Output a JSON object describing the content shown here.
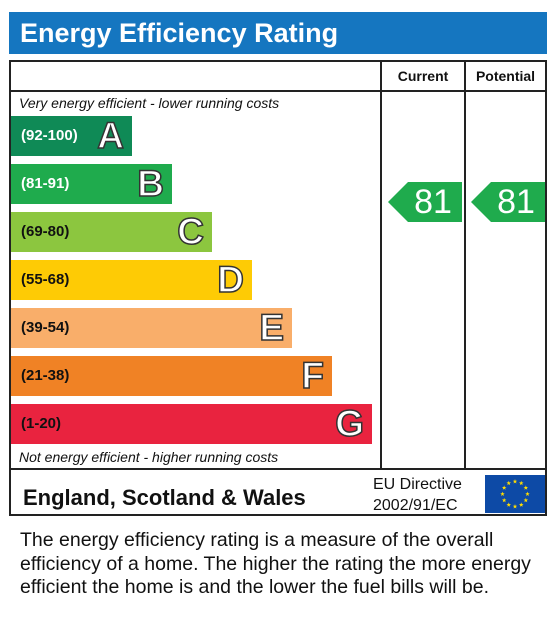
{
  "header": {
    "title": "Energy Efficiency Rating"
  },
  "columns": {
    "current": "Current",
    "potential": "Potential"
  },
  "captions": {
    "top": "Very energy efficient - lower running costs",
    "bottom": "Not energy efficient - higher running costs"
  },
  "bands": [
    {
      "range": "(92-100)",
      "letter": "A",
      "color": "#0f8a56",
      "range_color": "#ffffff"
    },
    {
      "range": "(81-91)",
      "letter": "B",
      "color": "#1fab4d",
      "range_color": "#ffffff"
    },
    {
      "range": "(69-80)",
      "letter": "C",
      "color": "#8cc63f",
      "range_color": "#111111"
    },
    {
      "range": "(55-68)",
      "letter": "D",
      "color": "#fecb05",
      "range_color": "#111111"
    },
    {
      "range": "(39-54)",
      "letter": "E",
      "color": "#f9ae6a",
      "range_color": "#111111"
    },
    {
      "range": "(21-38)",
      "letter": "F",
      "color": "#f08225",
      "range_color": "#111111"
    },
    {
      "range": "(1-20)",
      "letter": "G",
      "color": "#e9233f",
      "range_color": "#111111"
    }
  ],
  "ratings": {
    "current": {
      "value": "81",
      "color": "#1fab4d"
    },
    "potential": {
      "value": "81",
      "color": "#1fab4d"
    }
  },
  "footer": {
    "region": "England, Scotland & Wales",
    "directive_line1": "EU Directive",
    "directive_line2": "2002/91/EC",
    "flag_icon": "eu-flag-icon"
  },
  "description": "The energy efficiency rating is a measure of the overall efficiency of a home. The higher the rating the more energy efficient the home is and the lower the fuel bills will be."
}
